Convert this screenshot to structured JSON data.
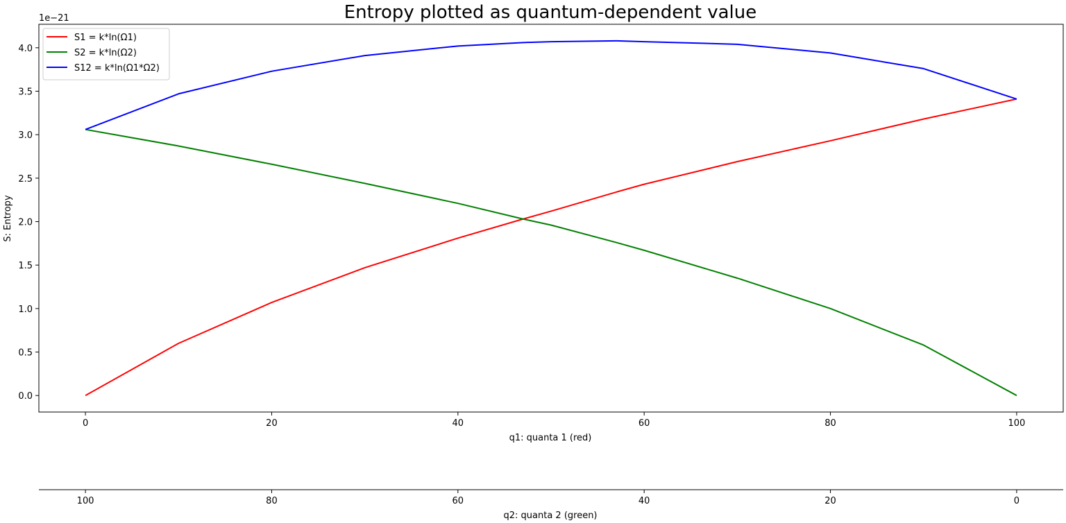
{
  "chart_data": {
    "type": "line",
    "title": "Entropy plotted as quantum-dependent value",
    "xlabel": "q1: quanta 1 (red)",
    "x2label": "q2: quanta 2 (green)",
    "ylabel": "S: Entropy",
    "y_offset_label": "1e−21",
    "xlim": [
      -5,
      105
    ],
    "ylim": [
      -0.19,
      4.27
    ],
    "x_ticks": [
      0,
      20,
      40,
      60,
      80,
      100
    ],
    "x_tick_labels": [
      "0",
      "20",
      "40",
      "60",
      "80",
      "100"
    ],
    "x2_tick_labels": [
      "100",
      "80",
      "60",
      "40",
      "20",
      "0"
    ],
    "y_ticks": [
      0.0,
      0.5,
      1.0,
      1.5,
      2.0,
      2.5,
      3.0,
      3.5,
      4.0
    ],
    "y_tick_labels": [
      "0.0",
      "0.5",
      "1.0",
      "1.5",
      "2.0",
      "2.5",
      "3.0",
      "3.5",
      "4.0"
    ],
    "legend_position": "top-left",
    "grid": false,
    "x": [
      0,
      10,
      20,
      30,
      40,
      47,
      50,
      57,
      60,
      70,
      80,
      90,
      100
    ],
    "series": [
      {
        "name": "S1 = k*ln(Ω1)",
        "color": "#ff0000",
        "values": [
          0.0,
          0.6,
          1.07,
          1.47,
          1.81,
          2.03,
          2.12,
          2.34,
          2.43,
          2.69,
          2.93,
          3.18,
          3.41
        ]
      },
      {
        "name": "S2 = k*ln(Ω2)",
        "color": "#008000",
        "values": [
          3.06,
          2.87,
          2.66,
          2.44,
          2.21,
          2.03,
          1.96,
          1.76,
          1.67,
          1.35,
          1.0,
          0.58,
          0.0
        ]
      },
      {
        "name": "S12 = k*ln(Ω1*Ω2)",
        "color": "#0000ff",
        "values": [
          3.06,
          3.47,
          3.73,
          3.91,
          4.02,
          4.06,
          4.07,
          4.08,
          4.07,
          4.04,
          3.94,
          3.76,
          3.41
        ]
      }
    ]
  }
}
